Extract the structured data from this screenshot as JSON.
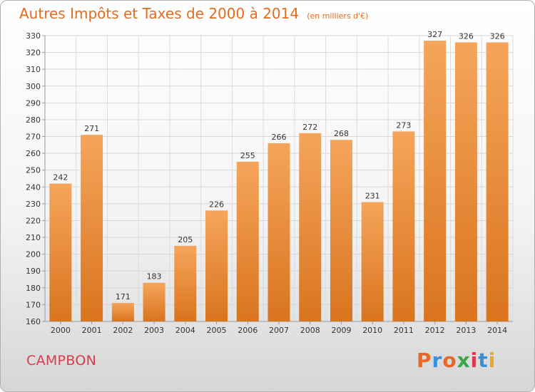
{
  "header": {
    "title": "Autres Impôts et Taxes de 2000 à 2014",
    "unit": "(en milliers d'€)"
  },
  "footer": {
    "commune": "CAMPBON",
    "brand": "Proxiti"
  },
  "colors": {
    "title": "#e46c1e",
    "commune": "#d83b4c",
    "bar_top": "#f5a55a",
    "bar_bottom": "#d9741f",
    "brand_letters": [
      "#e8682a",
      "#3a8fd6",
      "#e8682a",
      "#3aa64a",
      "#d83b4c",
      "#3a8fd6",
      "#e8a82a"
    ]
  },
  "chart_data": {
    "type": "bar",
    "title": "Autres Impôts et Taxes de 2000 à 2014",
    "subtitle": "(en milliers d'€)",
    "xlabel": "",
    "ylabel": "",
    "categories": [
      "2000",
      "2001",
      "2002",
      "2003",
      "2004",
      "2005",
      "2006",
      "2007",
      "2008",
      "2009",
      "2010",
      "2011",
      "2012",
      "2013",
      "2014"
    ],
    "values": [
      242,
      271,
      171,
      183,
      205,
      226,
      255,
      266,
      272,
      268,
      231,
      273,
      327,
      326,
      326
    ],
    "ylim": [
      160,
      330
    ],
    "yticks": [
      160,
      170,
      180,
      190,
      200,
      210,
      220,
      230,
      240,
      250,
      260,
      270,
      280,
      290,
      300,
      310,
      320,
      330
    ],
    "grid": true,
    "legend": "none"
  }
}
